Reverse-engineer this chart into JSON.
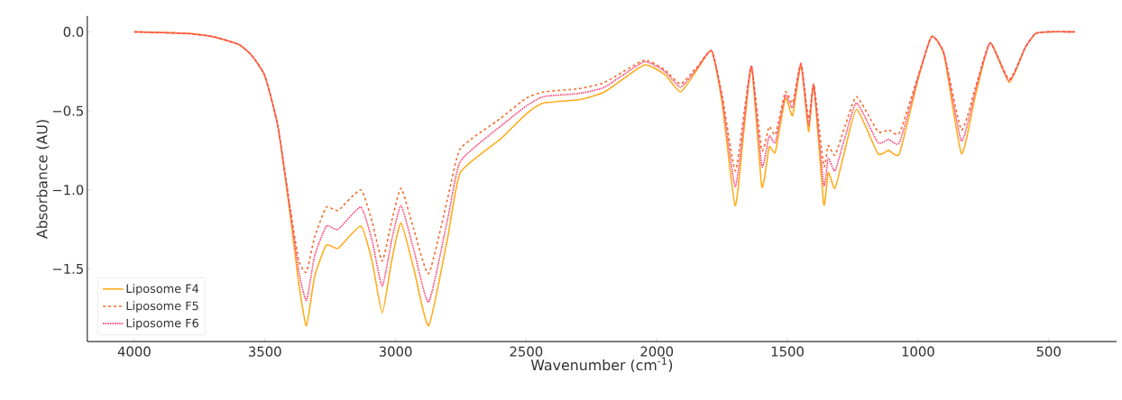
{
  "chart_data": {
    "type": "line",
    "xlabel": "Wavenumber (cm$^{-1}$)",
    "ylabel": "Absorbance (AU)",
    "x": [
      4000,
      3800,
      3700,
      3600,
      3550,
      3500,
      3450,
      3400,
      3370,
      3341,
      3310,
      3265,
      3220,
      3133,
      3090,
      3051,
      3015,
      2979,
      2930,
      2873,
      2800,
      2752,
      2600,
      2500,
      2434,
      2300,
      2200,
      2049,
      1970,
      1909,
      1850,
      1790,
      1750,
      1700,
      1665,
      1637,
      1598,
      1570,
      1546,
      1508,
      1480,
      1448,
      1419,
      1399,
      1361,
      1344,
      1318,
      1280,
      1235,
      1154,
      1113,
      1071,
      1000,
      948,
      900,
      834,
      780,
      724,
      651,
      590,
      550,
      500,
      400
    ],
    "xlim": [
      4180,
      240
    ],
    "xticks": [
      4000,
      3500,
      3000,
      2500,
      2000,
      1500,
      1000,
      500
    ],
    "ylim": [
      -1.96,
      0.1
    ],
    "yticks": [
      {
        "value": 0,
        "label": "0.0"
      },
      {
        "value": -0.5,
        "label": "−0.5"
      },
      {
        "value": -1,
        "label": "−1.0"
      },
      {
        "value": -1.5,
        "label": "−1.5"
      }
    ],
    "legend": "bottom left",
    "series": [
      {
        "name": "Liposome F4",
        "color": "#ffac1c",
        "line_style": "solid",
        "values": [
          0,
          -0.01,
          -0.03,
          -0.08,
          -0.15,
          -0.28,
          -0.6,
          -1.2,
          -1.6,
          -1.86,
          -1.55,
          -1.35,
          -1.37,
          -1.23,
          -1.45,
          -1.78,
          -1.45,
          -1.21,
          -1.5,
          -1.86,
          -1.3,
          -0.89,
          -0.68,
          -0.52,
          -0.45,
          -0.43,
          -0.38,
          -0.21,
          -0.27,
          -0.38,
          -0.25,
          -0.12,
          -0.45,
          -1.1,
          -0.6,
          -0.22,
          -0.98,
          -0.73,
          -0.76,
          -0.42,
          -0.53,
          -0.21,
          -0.63,
          -0.34,
          -1.09,
          -0.89,
          -0.99,
          -0.75,
          -0.49,
          -0.77,
          -0.75,
          -0.77,
          -0.3,
          -0.03,
          -0.15,
          -0.77,
          -0.4,
          -0.07,
          -0.32,
          -0.1,
          -0.01,
          0,
          0
        ]
      },
      {
        "name": "Liposome F5",
        "color": "#f26b2a",
        "line_style": "dashed",
        "values": [
          0,
          -0.01,
          -0.03,
          -0.08,
          -0.15,
          -0.28,
          -0.6,
          -1.15,
          -1.45,
          -1.52,
          -1.3,
          -1.11,
          -1.13,
          -1.0,
          -1.2,
          -1.45,
          -1.2,
          -0.99,
          -1.25,
          -1.53,
          -1.05,
          -0.74,
          -0.55,
          -0.42,
          -0.38,
          -0.36,
          -0.32,
          -0.18,
          -0.24,
          -0.33,
          -0.23,
          -0.12,
          -0.4,
          -0.88,
          -0.5,
          -0.22,
          -0.75,
          -0.6,
          -0.65,
          -0.38,
          -0.45,
          -0.2,
          -0.55,
          -0.33,
          -0.85,
          -0.72,
          -0.78,
          -0.6,
          -0.41,
          -0.63,
          -0.62,
          -0.64,
          -0.28,
          -0.03,
          -0.14,
          -0.62,
          -0.35,
          -0.07,
          -0.3,
          -0.1,
          -0.01,
          0,
          0
        ]
      },
      {
        "name": "Liposome F6",
        "color": "#ff3d6e",
        "line_style": "dotted",
        "values": [
          0,
          -0.01,
          -0.03,
          -0.08,
          -0.15,
          -0.28,
          -0.6,
          -1.17,
          -1.52,
          -1.7,
          -1.42,
          -1.23,
          -1.25,
          -1.11,
          -1.32,
          -1.61,
          -1.32,
          -1.1,
          -1.38,
          -1.71,
          -1.18,
          -0.82,
          -0.6,
          -0.47,
          -0.41,
          -0.39,
          -0.35,
          -0.19,
          -0.25,
          -0.35,
          -0.24,
          -0.12,
          -0.42,
          -0.98,
          -0.55,
          -0.22,
          -0.85,
          -0.66,
          -0.7,
          -0.4,
          -0.48,
          -0.2,
          -0.59,
          -0.34,
          -0.97,
          -0.8,
          -0.88,
          -0.67,
          -0.45,
          -0.7,
          -0.68,
          -0.7,
          -0.29,
          -0.03,
          -0.14,
          -0.69,
          -0.37,
          -0.07,
          -0.31,
          -0.1,
          -0.01,
          0,
          0
        ]
      }
    ]
  }
}
